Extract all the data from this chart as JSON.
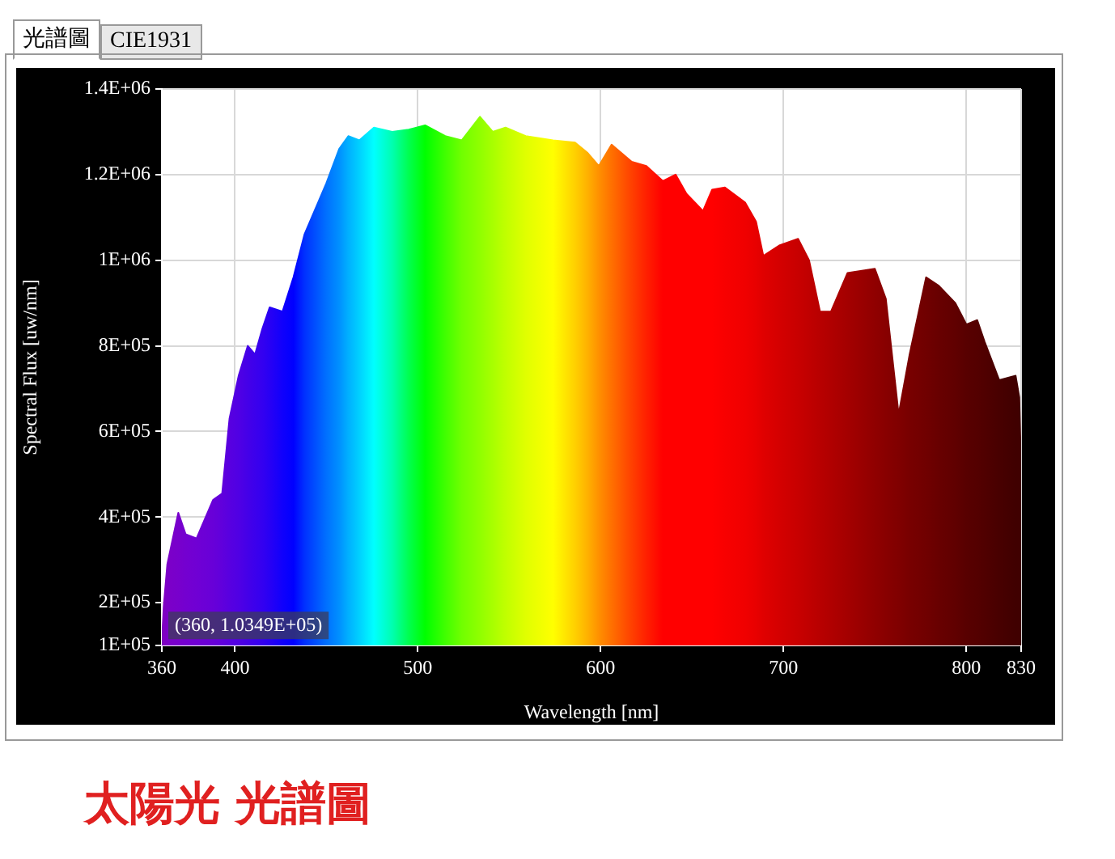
{
  "chart_data": {
    "type": "area",
    "title": "太陽光 光譜圖",
    "xlabel": "Wavelength [nm]",
    "ylabel": "Spectral Flux [uw/nm]",
    "annotations": [
      "光譜圖",
      "CIE1931",
      {
        "text": "(360, 1.0349E+05)",
        "x": 360,
        "y": 103490
      }
    ],
    "x": [
      360,
      361,
      363,
      369,
      373,
      379,
      388,
      393,
      397,
      402,
      407,
      411,
      415,
      419,
      426,
      432,
      438,
      444,
      450,
      457,
      462,
      468,
      476,
      486,
      495,
      504,
      515,
      524,
      534,
      541,
      548,
      559,
      574,
      586,
      593,
      599,
      606,
      617,
      625,
      634,
      641,
      647,
      656,
      661,
      668,
      679,
      685,
      689,
      698,
      708,
      714,
      720,
      726,
      735,
      750,
      756,
      763,
      769,
      778,
      785,
      794,
      800,
      806,
      810,
      818,
      827,
      829,
      830
    ],
    "series": [
      {
        "values": [
          103490,
          190000,
          290000,
          410000,
          360000,
          350000,
          440000,
          455000,
          630000,
          730000,
          800000,
          780000,
          840000,
          890000,
          880000,
          960000,
          1060000,
          1120000,
          1180000,
          1260000,
          1290000,
          1280000,
          1310000,
          1300000,
          1305000,
          1315000,
          1290000,
          1280000,
          1335000,
          1300000,
          1310000,
          1290000,
          1280000,
          1275000,
          1250000,
          1220000,
          1270000,
          1230000,
          1220000,
          1185000,
          1200000,
          1155000,
          1115000,
          1165000,
          1170000,
          1135000,
          1090000,
          1010000,
          1035000,
          1050000,
          1000000,
          880000,
          880000,
          970000,
          980000,
          910000,
          640000,
          780000,
          960000,
          940000,
          900000,
          850000,
          860000,
          810000,
          720000,
          730000,
          680000,
          500000
        ],
        "colors": [
          "#8000c0",
          "#8000c0",
          "#7c00c8",
          "#7800cc",
          "#7400d0",
          "#7000d4",
          "#6800d8",
          "#6000dc",
          "#5800e0",
          "#5000e4",
          "#4400e8",
          "#3c00ec",
          "#3400f0",
          "#2800f4",
          "#1000fc",
          "#0000ff",
          "#0030ff",
          "#0050ff",
          "#0070ff",
          "#0090ff",
          "#00b0ff",
          "#00d0ff",
          "#00ffff",
          "#00ffb0",
          "#00ff50",
          "#00ff00",
          "#40ff00",
          "#70ff00",
          "#90ff00",
          "#a8ff00",
          "#c0ff00",
          "#e0ff00",
          "#ffff00",
          "#ffd000",
          "#ffb000",
          "#ff9000",
          "#ff7000",
          "#ff4000",
          "#ff2000",
          "#ff0000",
          "#ff0000",
          "#ff0000",
          "#ff0000",
          "#ff0000",
          "#f80000",
          "#f00000",
          "#e80000",
          "#e00000",
          "#d40000",
          "#c80000",
          "#c00000",
          "#b80000",
          "#b00000",
          "#a40000",
          "#900000",
          "#880000",
          "#800000",
          "#780000",
          "#700000",
          "#680000",
          "#600000",
          "#580000",
          "#540000",
          "#500000",
          "#480000",
          "#400000",
          "#400000",
          "#400000"
        ]
      }
    ],
    "xlim": [
      360,
      830
    ],
    "xticks": [
      360,
      400,
      500,
      600,
      700,
      800,
      830
    ],
    "ylim": [
      100000,
      1400000
    ],
    "yticks": [
      {
        "value": 100000,
        "label": "1E+05"
      },
      {
        "value": 200000,
        "label": "2E+05"
      },
      {
        "value": 400000,
        "label": "4E+05"
      },
      {
        "value": 600000,
        "label": "6E+05"
      },
      {
        "value": 800000,
        "label": "8E+05"
      },
      {
        "value": 1000000,
        "label": "1E+06"
      },
      {
        "value": 1200000,
        "label": "1.2E+06"
      },
      {
        "value": 1400000,
        "label": "1.4E+06"
      }
    ],
    "grid": true,
    "legend": false,
    "marker": "none"
  }
}
